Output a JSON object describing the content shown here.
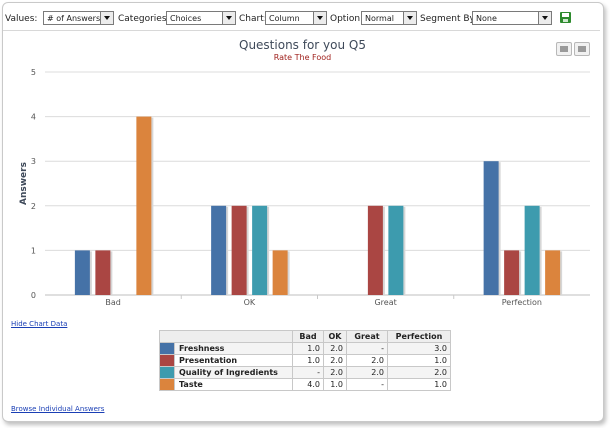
{
  "toolbar": {
    "values_label": "Values:",
    "values_selected": "# of Answers",
    "categories_label": "Categories:",
    "categories_selected": "Choices",
    "chart_label": "Chart:",
    "chart_selected": "Column",
    "option_label": "Option:",
    "option_selected": "Normal",
    "segment_label": "Segment By:",
    "segment_selected": "None"
  },
  "links": {
    "hide_chart_data": "Hide Chart Data",
    "browse_answers": "Browse Individual Answers"
  },
  "icons": {
    "save": "save-icon",
    "print": "print-icon",
    "download": "download-icon"
  },
  "chart_data": {
    "type": "bar",
    "title": "Questions for you Q5",
    "subtitle": "Rate The Food",
    "xlabel": "",
    "ylabel": "Answers",
    "ylim": [
      0,
      5
    ],
    "yticks": [
      0,
      1,
      2,
      3,
      4,
      5
    ],
    "grid": true,
    "categories": [
      "Bad",
      "OK",
      "Great",
      "Perfection"
    ],
    "series": [
      {
        "name": "Freshness",
        "color": "#4572a7",
        "values": [
          1,
          2,
          0,
          3
        ]
      },
      {
        "name": "Presentation",
        "color": "#aa4643",
        "values": [
          1,
          2,
          2,
          1
        ]
      },
      {
        "name": "Quality of Ingredients",
        "color": "#3d9bae",
        "values": [
          0,
          2,
          2,
          2
        ]
      },
      {
        "name": "Taste",
        "color": "#db843d",
        "values": [
          4,
          1,
          0,
          1
        ]
      }
    ]
  },
  "table": {
    "headers": [
      "",
      "Bad",
      "OK",
      "Great",
      "Perfection"
    ],
    "rows": [
      {
        "name": "Freshness",
        "cells": [
          "1.0",
          "2.0",
          "-",
          "3.0"
        ]
      },
      {
        "name": "Presentation",
        "cells": [
          "1.0",
          "2.0",
          "2.0",
          "1.0"
        ]
      },
      {
        "name": "Quality of Ingredients",
        "cells": [
          "-",
          "2.0",
          "2.0",
          "2.0"
        ]
      },
      {
        "name": "Taste",
        "cells": [
          "4.0",
          "1.0",
          "-",
          "1.0"
        ]
      }
    ]
  }
}
